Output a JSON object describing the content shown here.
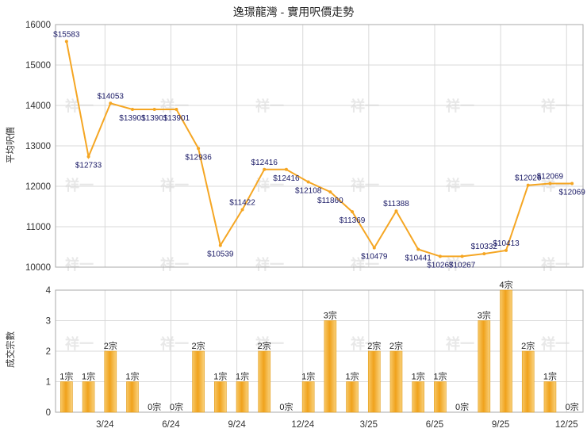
{
  "chart_data": [
    {
      "type": "line",
      "title": "逸璟龍灣 - 實用呎價走勢",
      "ylabel": "平均呎價",
      "ylim": [
        10000,
        16000
      ],
      "yticks": [
        10000,
        11000,
        12000,
        13000,
        14000,
        15000,
        16000
      ],
      "series": [
        {
          "color": "#f5a623",
          "values": [
            15583,
            12733,
            14053,
            13901,
            13901,
            13901,
            12936,
            10539,
            11422,
            12416,
            12416,
            12108,
            11860,
            11369,
            10479,
            11388,
            10441,
            10267,
            10267,
            10332,
            10413,
            12026,
            12069,
            12069
          ],
          "labels": [
            "$15583",
            "$12733",
            "$14053",
            "$13901",
            "$13901",
            "$13901",
            "$12936",
            "$10539",
            "$11422",
            "$12416",
            "$12416",
            "$12108",
            "$11860",
            "$11369",
            "$10479",
            "$11388",
            "$10441",
            "$10267",
            "$10267",
            "$10332",
            "$10413",
            "$12026",
            "$12069",
            "$12069"
          ]
        }
      ],
      "grid": true
    },
    {
      "type": "bar",
      "ylabel": "成交宗數",
      "ylim": [
        0,
        4
      ],
      "yticks": [
        0,
        1,
        2,
        3,
        4
      ],
      "x_tick_labels": [
        "3/24",
        "6/24",
        "9/24",
        "12/24",
        "3/25",
        "6/25",
        "9/25",
        "12/25"
      ],
      "values": [
        1,
        1,
        2,
        1,
        0,
        0,
        2,
        1,
        1,
        2,
        0,
        1,
        3,
        1,
        2,
        2,
        1,
        1,
        0,
        3,
        4,
        2,
        1,
        0
      ],
      "labels": [
        "1宗",
        "1宗",
        "2宗",
        "1宗",
        "0宗",
        "0宗",
        "2宗",
        "1宗",
        "1宗",
        "2宗",
        "0宗",
        "1宗",
        "3宗",
        "1宗",
        "2宗",
        "2宗",
        "1宗",
        "1宗",
        "0宗",
        "3宗",
        "4宗",
        "2宗",
        "1宗",
        "0宗"
      ],
      "color": "#f0a820",
      "grid": true
    }
  ],
  "watermark": "祥一"
}
